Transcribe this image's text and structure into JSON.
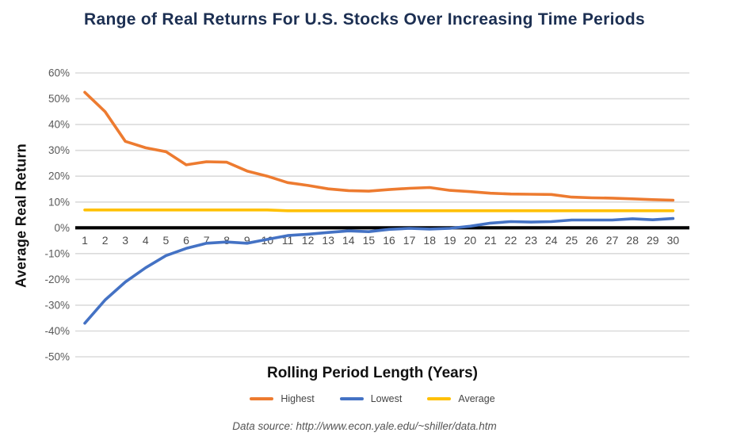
{
  "title": "Range of Real Returns For U.S. Stocks Over Increasing Time Periods",
  "axes": {
    "y_title": "Average Real Return",
    "x_title": "Rolling Period Length (Years)"
  },
  "footer": {
    "text": "Data source: http://www.econ.yale.edu/~shiller/data.htm"
  },
  "colors": {
    "title": "#1C2F52",
    "axis_titles": "#111111",
    "gridline": "#DBDBDB",
    "zero_axis": "#000000",
    "y_tick_label": "#595959",
    "x_tick_label": "#4D4D4D",
    "legend_label": "#454545",
    "footer_text": "#555555",
    "highest": "#ED7B30",
    "lowest": "#4472C4",
    "average": "#FFC000"
  },
  "chart_data": {
    "type": "line",
    "title": "Range of Real Returns For U.S. Stocks Over Increasing Time Periods",
    "xlabel": "Rolling Period Length (Years)",
    "ylabel": "Average Real Return",
    "grid": true,
    "legend_position": "bottom",
    "xlim": [
      1,
      30
    ],
    "ylim": [
      -50,
      60
    ],
    "x": [
      1,
      2,
      3,
      4,
      5,
      6,
      7,
      8,
      9,
      10,
      11,
      12,
      13,
      14,
      15,
      16,
      17,
      18,
      19,
      20,
      21,
      22,
      23,
      24,
      25,
      26,
      27,
      28,
      29,
      30
    ],
    "yticks": [
      {
        "value": 60,
        "label": "60%"
      },
      {
        "value": 50,
        "label": "50%"
      },
      {
        "value": 40,
        "label": "40%"
      },
      {
        "value": 30,
        "label": "30%"
      },
      {
        "value": 20,
        "label": "20%"
      },
      {
        "value": 10,
        "label": "10%"
      },
      {
        "value": 0,
        "label": "0%"
      },
      {
        "value": -10,
        "label": "-10%"
      },
      {
        "value": -20,
        "label": "-20%"
      },
      {
        "value": -30,
        "label": "-30%"
      },
      {
        "value": -40,
        "label": "-40%"
      },
      {
        "value": -50,
        "label": "-50%"
      }
    ],
    "series": [
      {
        "name": "Highest",
        "color": "#ED7B30",
        "values": [
          52.5,
          45,
          33.5,
          31,
          29.5,
          24.4,
          25.6,
          25.4,
          22,
          20,
          17.5,
          16.4,
          15.1,
          14.4,
          14.2,
          14.8,
          15.3,
          15.6,
          14.5,
          14,
          13.4,
          13.1,
          13,
          12.9,
          11.9,
          11.6,
          11.5,
          11.2,
          10.9,
          10.7
        ]
      },
      {
        "name": "Lowest",
        "color": "#4472C4",
        "values": [
          -37,
          -28,
          -21,
          -15.5,
          -10.8,
          -8,
          -6,
          -5.5,
          -6,
          -4.5,
          -3,
          -2.5,
          -1.8,
          -1.2,
          -1.5,
          -0.6,
          -0.2,
          -0.5,
          -0.2,
          0.6,
          1.8,
          2.4,
          2.2,
          2.4,
          3,
          3,
          3,
          3.5,
          3.1,
          3.6
        ]
      },
      {
        "name": "Average",
        "color": "#FFC000",
        "values": [
          6.9,
          6.9,
          6.9,
          6.9,
          6.9,
          6.9,
          6.9,
          6.9,
          6.9,
          6.9,
          6.6,
          6.6,
          6.6,
          6.6,
          6.6,
          6.6,
          6.6,
          6.6,
          6.6,
          6.6,
          6.6,
          6.6,
          6.6,
          6.6,
          6.6,
          6.6,
          6.6,
          6.6,
          6.6,
          6.6
        ]
      }
    ]
  }
}
